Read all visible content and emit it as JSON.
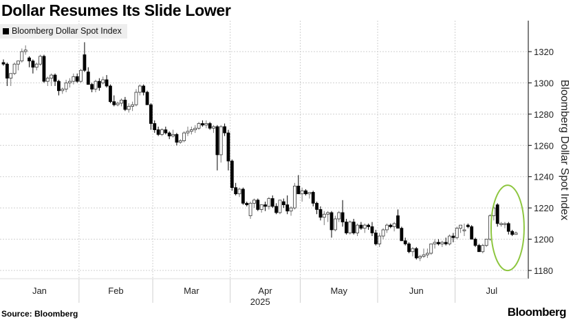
{
  "chart_data": {
    "type": "candlestick",
    "title": "Dollar Resumes Its Slide Lower",
    "legend": [
      "Bloomberg Dollar Spot Index"
    ],
    "legend_placement": "top-left",
    "ylabel": "Bloomberg Dollar Spot Index",
    "ylim": [
      1175,
      1340
    ],
    "yticks": [
      1180,
      1200,
      1220,
      1240,
      1260,
      1280,
      1300,
      1320
    ],
    "year_label": "2025",
    "grid": true,
    "highlight": {
      "shape": "ellipse",
      "color": "#8dc63f",
      "around": "last 7 sessions"
    },
    "months": [
      {
        "label": "Jan",
        "start": 0
      },
      {
        "label": "Feb",
        "start": 21
      },
      {
        "label": "Mar",
        "start": 41
      },
      {
        "label": "Apr",
        "start": 62
      },
      {
        "label": "May",
        "start": 81
      },
      {
        "label": "Jun",
        "start": 102
      },
      {
        "label": "Jul",
        "start": 123
      }
    ],
    "ohlc": [
      [
        1313,
        1315,
        1311,
        1312
      ],
      [
        1312,
        1313,
        1298,
        1303
      ],
      [
        1303,
        1306,
        1298,
        1306
      ],
      [
        1306,
        1313,
        1305,
        1312
      ],
      [
        1312,
        1314,
        1308,
        1314
      ],
      [
        1314,
        1322,
        1313,
        1320
      ],
      [
        1320,
        1324,
        1318,
        1321
      ],
      [
        1316,
        1317,
        1310,
        1314
      ],
      [
        1314,
        1315,
        1306,
        1310
      ],
      [
        1310,
        1313,
        1308,
        1312
      ],
      [
        1312,
        1318,
        1311,
        1317
      ],
      [
        1317,
        1318,
        1300,
        1301
      ],
      [
        1301,
        1304,
        1298,
        1303
      ],
      [
        1303,
        1306,
        1298,
        1305
      ],
      [
        1305,
        1306,
        1298,
        1301
      ],
      [
        1301,
        1302,
        1292,
        1295
      ],
      [
        1295,
        1297,
        1293,
        1296
      ],
      [
        1296,
        1302,
        1294,
        1300
      ],
      [
        1300,
        1303,
        1297,
        1301
      ],
      [
        1301,
        1306,
        1299,
        1304
      ],
      [
        1304,
        1306,
        1300,
        1301
      ],
      [
        1301,
        1309,
        1300,
        1308
      ],
      [
        1318,
        1326,
        1307,
        1308
      ],
      [
        1307,
        1310,
        1299,
        1299
      ],
      [
        1299,
        1300,
        1294,
        1296
      ],
      [
        1296,
        1302,
        1294,
        1301
      ],
      [
        1301,
        1303,
        1295,
        1297
      ],
      [
        1300,
        1304,
        1299,
        1302
      ],
      [
        1302,
        1305,
        1297,
        1298
      ],
      [
        1298,
        1299,
        1287,
        1288
      ],
      [
        1288,
        1292,
        1285,
        1286
      ],
      [
        1286,
        1288,
        1285,
        1287
      ],
      [
        1287,
        1290,
        1285,
        1289
      ],
      [
        1289,
        1291,
        1282,
        1283
      ],
      [
        1283,
        1287,
        1281,
        1285
      ],
      [
        1285,
        1288,
        1282,
        1286
      ],
      [
        1286,
        1296,
        1285,
        1294
      ],
      [
        1294,
        1299,
        1292,
        1298
      ],
      [
        1298,
        1299,
        1292,
        1294
      ],
      [
        1294,
        1295,
        1286,
        1286
      ],
      [
        1286,
        1287,
        1270,
        1274
      ],
      [
        1274,
        1276,
        1268,
        1270
      ],
      [
        1270,
        1272,
        1266,
        1267
      ],
      [
        1267,
        1271,
        1266,
        1270
      ],
      [
        1270,
        1272,
        1267,
        1268
      ],
      [
        1268,
        1269,
        1264,
        1266
      ],
      [
        1266,
        1270,
        1265,
        1267
      ],
      [
        1267,
        1268,
        1260,
        1262
      ],
      [
        1262,
        1264,
        1261,
        1263
      ],
      [
        1263,
        1269,
        1262,
        1268
      ],
      [
        1268,
        1272,
        1266,
        1269
      ],
      [
        1269,
        1272,
        1267,
        1270
      ],
      [
        1270,
        1273,
        1268,
        1271
      ],
      [
        1271,
        1275,
        1270,
        1274
      ],
      [
        1274,
        1276,
        1272,
        1273
      ],
      [
        1273,
        1276,
        1271,
        1274
      ],
      [
        1274,
        1275,
        1270,
        1271
      ],
      [
        1271,
        1273,
        1268,
        1272
      ],
      [
        1272,
        1273,
        1244,
        1254
      ],
      [
        1254,
        1273,
        1249,
        1272
      ],
      [
        1272,
        1274,
        1266,
        1268
      ],
      [
        1268,
        1270,
        1244,
        1250
      ],
      [
        1250,
        1251,
        1231,
        1233
      ],
      [
        1233,
        1236,
        1228,
        1229
      ],
      [
        1229,
        1233,
        1227,
        1232
      ],
      [
        1232,
        1233,
        1222,
        1223
      ],
      [
        1223,
        1224,
        1221,
        1222
      ],
      [
        1215,
        1224,
        1213,
        1223
      ],
      [
        1223,
        1226,
        1220,
        1225
      ],
      [
        1225,
        1226,
        1218,
        1219
      ],
      [
        1219,
        1222,
        1217,
        1222
      ],
      [
        1222,
        1224,
        1218,
        1221
      ],
      [
        1221,
        1227,
        1219,
        1226
      ],
      [
        1226,
        1228,
        1220,
        1221
      ],
      [
        1221,
        1223,
        1216,
        1217
      ],
      [
        1217,
        1225,
        1216,
        1225
      ],
      [
        1224,
        1226,
        1220,
        1222
      ],
      [
        1222,
        1228,
        1216,
        1218
      ],
      [
        1218,
        1221,
        1215,
        1220
      ],
      [
        1220,
        1236,
        1219,
        1234
      ],
      [
        1234,
        1241,
        1229,
        1229
      ],
      [
        1229,
        1233,
        1224,
        1231
      ],
      [
        1231,
        1232,
        1228,
        1229
      ],
      [
        1229,
        1230,
        1226,
        1230
      ],
      [
        1230,
        1231,
        1221,
        1223
      ],
      [
        1223,
        1224,
        1216,
        1219
      ],
      [
        1219,
        1221,
        1212,
        1214
      ],
      [
        1214,
        1218,
        1209,
        1216
      ],
      [
        1216,
        1218,
        1211,
        1217
      ],
      [
        1217,
        1218,
        1201,
        1206
      ],
      [
        1206,
        1215,
        1205,
        1213
      ],
      [
        1213,
        1218,
        1211,
        1217
      ],
      [
        1217,
        1225,
        1208,
        1211
      ],
      [
        1211,
        1213,
        1203,
        1204
      ],
      [
        1204,
        1212,
        1203,
        1211
      ],
      [
        1211,
        1213,
        1203,
        1204
      ],
      [
        1204,
        1210,
        1202,
        1209
      ],
      [
        1209,
        1211,
        1206,
        1207
      ],
      [
        1207,
        1210,
        1204,
        1209
      ],
      [
        1209,
        1210,
        1206,
        1208
      ],
      [
        1208,
        1211,
        1202,
        1204
      ],
      [
        1204,
        1206,
        1196,
        1197
      ],
      [
        1197,
        1204,
        1195,
        1202
      ],
      [
        1202,
        1207,
        1200,
        1206
      ],
      [
        1206,
        1210,
        1204,
        1209
      ],
      [
        1209,
        1210,
        1207,
        1208
      ],
      [
        1208,
        1211,
        1205,
        1210
      ],
      [
        1215,
        1219,
        1207,
        1207
      ],
      [
        1207,
        1208,
        1199,
        1199
      ],
      [
        1199,
        1201,
        1196,
        1197
      ],
      [
        1197,
        1198,
        1191,
        1192
      ],
      [
        1192,
        1195,
        1189,
        1194
      ],
      [
        1194,
        1195,
        1187,
        1188
      ],
      [
        1188,
        1190,
        1186,
        1189
      ],
      [
        1189,
        1194,
        1188,
        1190
      ],
      [
        1190,
        1194,
        1188,
        1191
      ],
      [
        1191,
        1197,
        1190,
        1197
      ],
      [
        1197,
        1200,
        1194,
        1198
      ],
      [
        1198,
        1200,
        1196,
        1197
      ],
      [
        1197,
        1199,
        1195,
        1198
      ],
      [
        1198,
        1201,
        1196,
        1197
      ],
      [
        1197,
        1203,
        1196,
        1202
      ],
      [
        1202,
        1204,
        1198,
        1201
      ],
      [
        1201,
        1208,
        1200,
        1207
      ],
      [
        1207,
        1209,
        1204,
        1209
      ],
      [
        1206,
        1210,
        1202,
        1206
      ],
      [
        1209,
        1210,
        1207,
        1208
      ],
      [
        1208,
        1209,
        1200,
        1200
      ],
      [
        1200,
        1201,
        1195,
        1196
      ],
      [
        1196,
        1197,
        1192,
        1192
      ],
      [
        1192,
        1197,
        1191,
        1196
      ],
      [
        1196,
        1200,
        1195,
        1200
      ],
      [
        1200,
        1216,
        1199,
        1215
      ],
      [
        1215,
        1222,
        1212,
        1220
      ],
      [
        1222,
        1223,
        1208,
        1210
      ],
      [
        1210,
        1211,
        1208,
        1210
      ],
      [
        1210,
        1211,
        1207,
        1210
      ],
      [
        1210,
        1211,
        1203,
        1205
      ],
      [
        1205,
        1206,
        1202,
        1203
      ],
      [
        1203,
        1205,
        1203,
        1204
      ]
    ]
  },
  "footer": {
    "source": "Source: Bloomberg",
    "logo": "Bloomberg"
  }
}
